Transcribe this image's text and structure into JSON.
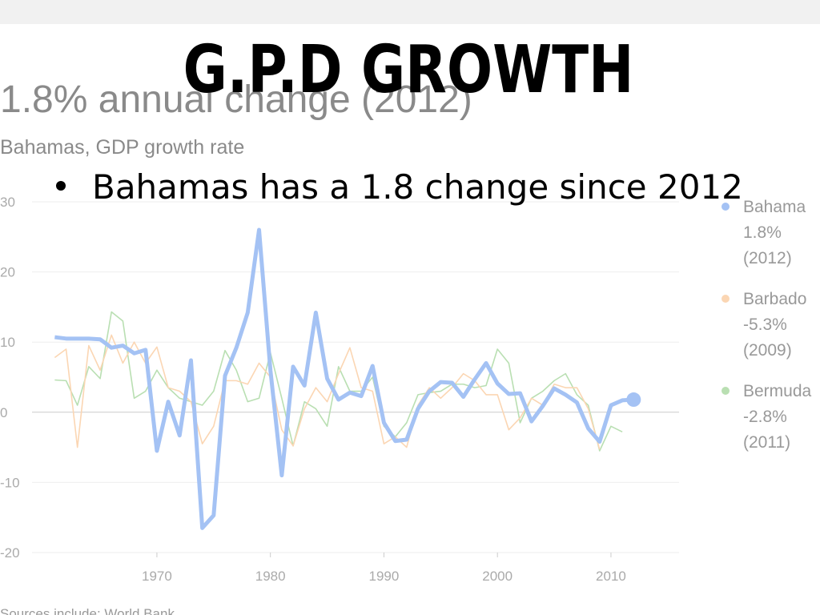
{
  "slide": {
    "title": "G.P.D GROWTH",
    "bullet": "Bahamas has a 1.8 change since 2012"
  },
  "chart_data": {
    "type": "line",
    "title": "1.8% annual change (2012)",
    "subtitle": "Bahamas, GDP growth rate",
    "source": "Sources include: World Bank",
    "x": [
      1961,
      1962,
      1963,
      1964,
      1965,
      1966,
      1967,
      1968,
      1969,
      1970,
      1971,
      1972,
      1973,
      1974,
      1975,
      1976,
      1977,
      1978,
      1979,
      1980,
      1981,
      1982,
      1983,
      1984,
      1985,
      1986,
      1987,
      1988,
      1989,
      1990,
      1991,
      1992,
      1993,
      1994,
      1995,
      1996,
      1997,
      1998,
      1999,
      2000,
      2001,
      2002,
      2003,
      2004,
      2005,
      2006,
      2007,
      2008,
      2009,
      2010,
      2011,
      2012
    ],
    "series": [
      {
        "name": "Bermuda",
        "legend_value": "-2.8%",
        "legend_year": "(2011)",
        "color": "#b9dfb2",
        "values": [
          4.6,
          4.5,
          1.0,
          6.5,
          4.8,
          14.3,
          13.0,
          2.0,
          3.0,
          6.0,
          3.5,
          2.0,
          1.5,
          1.0,
          3.0,
          8.8,
          6.0,
          1.5,
          2.0,
          8.5,
          2.0,
          -4.8,
          1.5,
          0.5,
          -2.0,
          6.5,
          3.0,
          3.0,
          5.0,
          -2.0,
          -3.5,
          -1.5,
          2.5,
          2.8,
          3.0,
          4.0,
          4.0,
          3.5,
          3.8,
          9.0,
          7.0,
          -1.5,
          2.0,
          3.0,
          4.5,
          5.5,
          2.5,
          1.0,
          -5.5,
          -2.0,
          -2.8,
          null
        ]
      },
      {
        "name": "Barbado",
        "legend_value": "-5.3%",
        "legend_year": "(2009)",
        "color": "#fbd6b3",
        "values": [
          7.8,
          9.0,
          -5.0,
          9.5,
          6.0,
          11.0,
          7.0,
          10.0,
          7.0,
          9.3,
          3.5,
          3.0,
          1.5,
          -4.5,
          -2.0,
          4.5,
          4.5,
          4.0,
          7.0,
          5.0,
          -2.5,
          -4.8,
          0.5,
          3.5,
          1.5,
          5.5,
          9.2,
          3.5,
          3.0,
          -4.5,
          -3.5,
          -5.0,
          1.0,
          3.5,
          2.0,
          3.5,
          5.5,
          4.5,
          2.5,
          2.5,
          -2.5,
          -0.8,
          2.0,
          1.0,
          4.0,
          3.5,
          3.5,
          0.5,
          -5.3,
          null,
          null,
          null
        ]
      },
      {
        "name": "Bahama",
        "legend_value": "1.8%",
        "legend_year": "(2012)",
        "color": "#a4c2f4",
        "values": [
          10.7,
          10.5,
          10.5,
          10.5,
          10.4,
          9.2,
          9.5,
          8.4,
          8.9,
          -5.5,
          1.5,
          -3.3,
          7.4,
          -16.5,
          -14.7,
          5.2,
          9.2,
          14.2,
          26.0,
          6.0,
          -9.0,
          6.5,
          3.8,
          14.2,
          4.8,
          1.8,
          2.8,
          2.3,
          6.6,
          -1.5,
          -4.1,
          -3.9,
          0.5,
          3.0,
          4.3,
          4.2,
          2.2,
          4.7,
          7.0,
          4.1,
          2.6,
          2.7,
          -1.3,
          0.9,
          3.4,
          2.5,
          1.4,
          -2.3,
          -4.2,
          1.0,
          1.7,
          1.8
        ]
      }
    ],
    "xlim": [
      1959,
      2016
    ],
    "xticks": [
      1970,
      1980,
      1990,
      2000,
      2010
    ],
    "ylim": [
      -20,
      30
    ],
    "yticks": [
      -20,
      -10,
      0,
      10,
      20,
      30
    ],
    "grid": true
  }
}
